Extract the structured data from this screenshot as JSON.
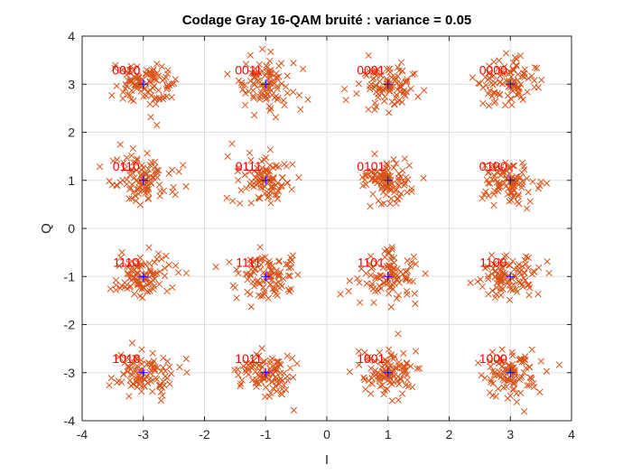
{
  "chart_data": {
    "type": "scatter",
    "title": "Codage Gray 16-QAM bruité : variance = 0.05",
    "xlabel": "I",
    "ylabel": "Q",
    "xlim": [
      -4,
      4
    ],
    "ylim": [
      -4,
      4
    ],
    "xticks": [
      "-4",
      "-3",
      "-2",
      "-1",
      "0",
      "1",
      "2",
      "3",
      "4"
    ],
    "yticks": [
      "-4",
      "-3",
      "-2",
      "-1",
      "0",
      "1",
      "2",
      "3",
      "4"
    ],
    "grid": true,
    "noise_variance": 0.05,
    "points_per_symbol": 100,
    "colors": {
      "noisy": "#D95319",
      "ideal": "#0000FF",
      "label": "#FF0000",
      "grid": "#DFDFDF",
      "axis": "#262626"
    },
    "symbols": [
      {
        "I": -3,
        "Q": 3,
        "bits": "0010"
      },
      {
        "I": -1,
        "Q": 3,
        "bits": "0011"
      },
      {
        "I": 1,
        "Q": 3,
        "bits": "0001"
      },
      {
        "I": 3,
        "Q": 3,
        "bits": "0000"
      },
      {
        "I": -3,
        "Q": 1,
        "bits": "0110"
      },
      {
        "I": -1,
        "Q": 1,
        "bits": "0111"
      },
      {
        "I": 1,
        "Q": 1,
        "bits": "0101"
      },
      {
        "I": 3,
        "Q": 1,
        "bits": "0100"
      },
      {
        "I": -3,
        "Q": -1,
        "bits": "1110"
      },
      {
        "I": -1,
        "Q": -1,
        "bits": "1111"
      },
      {
        "I": 1,
        "Q": -1,
        "bits": "1101"
      },
      {
        "I": 3,
        "Q": -1,
        "bits": "1100"
      },
      {
        "I": -3,
        "Q": -3,
        "bits": "1010"
      },
      {
        "I": -1,
        "Q": -3,
        "bits": "1011"
      },
      {
        "I": 1,
        "Q": -3,
        "bits": "1001"
      },
      {
        "I": 3,
        "Q": -3,
        "bits": "1000"
      }
    ]
  }
}
